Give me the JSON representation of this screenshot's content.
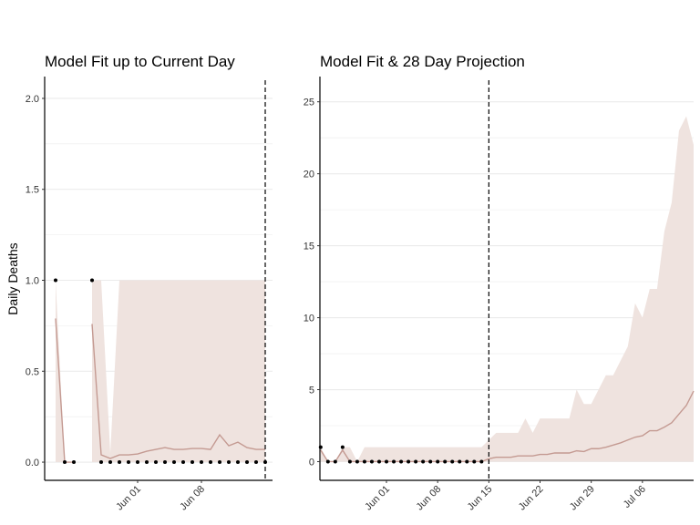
{
  "colors": {
    "band": "#efe3df",
    "line": "#c49a92",
    "point": "#000000",
    "grid": "#ebebeb",
    "axis": "#000000"
  },
  "ylabel": "Daily Deaths",
  "chart_data": [
    {
      "type": "line",
      "title": "Model Fit up to Current Day",
      "ylabel": "Daily Deaths",
      "ylim": [
        -0.1,
        2.1
      ],
      "yticks": [
        0.0,
        0.5,
        1.0,
        1.5,
        2.0
      ],
      "ytick_labels": [
        "0.0",
        "0.5",
        "1.0",
        "1.5",
        "2.0"
      ],
      "x": [
        "May 23",
        "May 24",
        "May 25",
        "May 26",
        "May 27",
        "May 28",
        "May 29",
        "May 30",
        "May 31",
        "Jun 01",
        "Jun 02",
        "Jun 03",
        "Jun 04",
        "Jun 05",
        "Jun 06",
        "Jun 07",
        "Jun 08",
        "Jun 09",
        "Jun 10",
        "Jun 11",
        "Jun 12",
        "Jun 13",
        "Jun 14",
        "Jun 15"
      ],
      "xticks": [
        "Jun 01",
        "Jun 08"
      ],
      "current_day": "Jun 15",
      "grid": true,
      "series": [
        {
          "kind": "points",
          "values": [
            1,
            0,
            0,
            null,
            1,
            0,
            0,
            0,
            0,
            0,
            0,
            0,
            0,
            0,
            0,
            0,
            0,
            0,
            0,
            0,
            0,
            0,
            0,
            0
          ]
        },
        {
          "kind": "line",
          "values": [
            0.79,
            0.0,
            0.0,
            null,
            0.76,
            0.04,
            0.02,
            0.04,
            0.04,
            0.045,
            0.06,
            0.07,
            0.08,
            0.07,
            0.07,
            0.075,
            0.075,
            0.07,
            0.15,
            0.09,
            0.11,
            0.08,
            0.07,
            0.07
          ]
        },
        {
          "kind": "band",
          "lower": [
            0,
            0,
            0,
            null,
            0,
            0,
            0,
            0,
            0,
            0,
            0,
            0,
            0,
            0,
            0,
            0,
            0,
            0,
            0,
            0,
            0,
            0,
            0,
            0
          ],
          "upper": [
            1,
            0,
            0,
            null,
            1,
            1,
            0.05,
            1,
            1,
            1,
            1,
            1,
            1,
            1,
            1,
            1,
            1,
            1,
            1,
            1,
            1,
            1,
            1,
            1
          ]
        }
      ]
    },
    {
      "type": "line",
      "title": "Model Fit & 28 Day Projection",
      "ylabel": "",
      "ylim": [
        -1.3,
        26.5
      ],
      "yticks": [
        0,
        5,
        10,
        15,
        20,
        25
      ],
      "ytick_labels": [
        "0",
        "5",
        "10",
        "15",
        "20",
        "25"
      ],
      "x_start": "May 23",
      "n_days": 52,
      "xticks": [
        "Jun 01",
        "Jun 08",
        "Jun 15",
        "Jun 22",
        "Jun 29",
        "Jul 06"
      ],
      "current_day": "Jun 15",
      "grid": true,
      "series": [
        {
          "kind": "points",
          "values": [
            1,
            0,
            0,
            1,
            0,
            0,
            0,
            0,
            0,
            0,
            0,
            0,
            0,
            0,
            0,
            0,
            0,
            0,
            0,
            0,
            0,
            0,
            0
          ]
        },
        {
          "kind": "line",
          "values": [
            0.8,
            0,
            0,
            0.8,
            0,
            0,
            0,
            0,
            0,
            0,
            0,
            0,
            0,
            0,
            0,
            0,
            0,
            0,
            0,
            0,
            0,
            0,
            0,
            0.2,
            0.3,
            0.3,
            0.3,
            0.4,
            0.4,
            0.4,
            0.5,
            0.5,
            0.6,
            0.6,
            0.6,
            0.75,
            0.7,
            0.9,
            0.9,
            1.0,
            1.15,
            1.3,
            1.5,
            1.7,
            1.8,
            2.15,
            2.15,
            2.4,
            2.7,
            3.3,
            3.9,
            4.9
          ]
        },
        {
          "kind": "band",
          "lower": [
            0,
            0,
            0,
            0,
            0,
            0,
            0,
            0,
            0,
            0,
            0,
            0,
            0,
            0,
            0,
            0,
            0,
            0,
            0,
            0,
            0,
            0,
            0,
            0,
            0,
            0,
            0,
            0,
            0,
            0,
            0,
            0,
            0,
            0,
            0,
            0,
            0,
            0,
            0,
            0,
            0,
            0,
            0,
            0,
            0,
            0,
            0,
            0,
            0,
            0,
            0,
            0
          ],
          "upper": [
            1,
            0,
            0,
            1,
            1,
            0,
            1,
            1,
            1,
            1,
            1,
            1,
            1,
            1,
            1,
            1,
            1,
            1,
            1,
            1,
            1,
            1,
            1,
            1.5,
            2,
            2,
            2,
            2,
            3,
            2,
            3,
            3,
            3,
            3,
            3,
            5,
            4,
            4,
            5,
            6,
            6,
            7,
            8,
            11,
            10,
            12,
            12,
            16,
            18,
            23,
            24,
            22
          ]
        }
      ]
    }
  ]
}
